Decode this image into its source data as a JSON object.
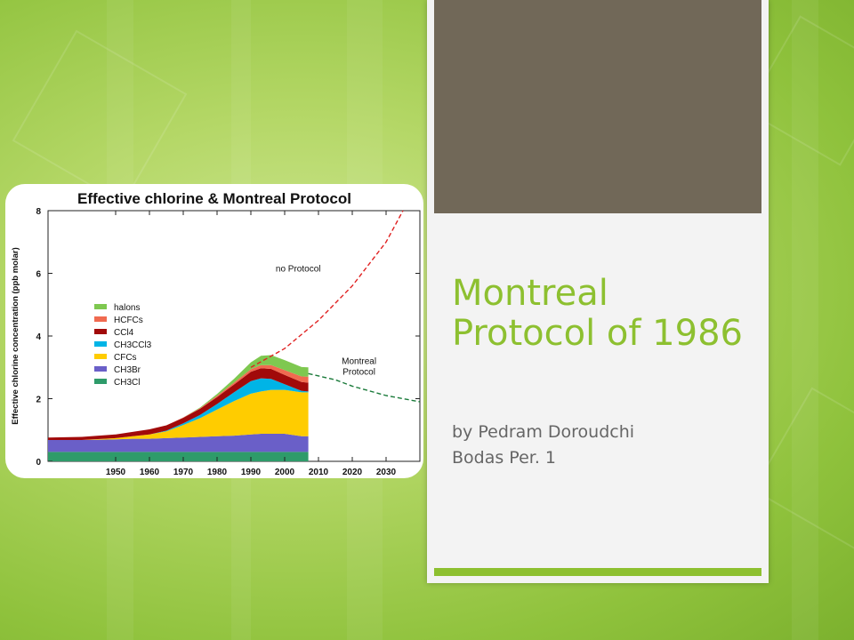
{
  "slide": {
    "title": "Montreal Protocol of 1986",
    "subtitle_line1": "by Pedram Doroudchi",
    "subtitle_line2": "Bodas Per. 1",
    "colors": {
      "accent": "#8dc030",
      "photo": "#716858",
      "panel": "#f3f3f3"
    }
  },
  "chart_data": {
    "type": "area",
    "title": "Effective chlorine & Montreal Protocol",
    "ylabel": "Effective chlorine concentration (ppb molar)",
    "xlabel": "",
    "xlim": [
      1930,
      2040
    ],
    "ylim": [
      0,
      8
    ],
    "x_ticks": [
      "1950",
      "1960",
      "1970",
      "1980",
      "1990",
      "2000",
      "2010",
      "2020",
      "2030"
    ],
    "y_ticks": [
      "0",
      "2",
      "4",
      "6",
      "8"
    ],
    "legend": [
      "halons",
      "HCFCs",
      "CCl4",
      "CH3CCl3",
      "CFCs",
      "CH3Br",
      "CH3Cl"
    ],
    "legend_placement": "left",
    "x": [
      1930,
      1940,
      1950,
      1955,
      1960,
      1965,
      1970,
      1975,
      1980,
      1985,
      1990,
      1993,
      1996,
      2000,
      2005,
      2007
    ],
    "series": [
      {
        "name": "CH3Cl",
        "color": "#2e9b6a",
        "values": [
          0.3,
          0.3,
          0.3,
          0.3,
          0.3,
          0.3,
          0.3,
          0.3,
          0.3,
          0.3,
          0.3,
          0.3,
          0.3,
          0.3,
          0.3,
          0.3
        ]
      },
      {
        "name": "CH3Br",
        "color": "#6a5fc8",
        "values": [
          0.38,
          0.38,
          0.4,
          0.42,
          0.42,
          0.44,
          0.46,
          0.48,
          0.5,
          0.52,
          0.56,
          0.58,
          0.58,
          0.58,
          0.5,
          0.5
        ]
      },
      {
        "name": "CFCs",
        "color": "#ffcc00",
        "values": [
          0.0,
          0.0,
          0.04,
          0.08,
          0.14,
          0.22,
          0.4,
          0.6,
          0.85,
          1.1,
          1.3,
          1.35,
          1.4,
          1.4,
          1.4,
          1.4
        ]
      },
      {
        "name": "CH3CCl3",
        "color": "#00b4e6",
        "values": [
          0.0,
          0.0,
          0.0,
          0.0,
          0.0,
          0.02,
          0.05,
          0.1,
          0.18,
          0.28,
          0.4,
          0.42,
          0.35,
          0.18,
          0.05,
          0.03
        ]
      },
      {
        "name": "CCl4",
        "color": "#a10a0a",
        "values": [
          0.08,
          0.1,
          0.12,
          0.14,
          0.16,
          0.17,
          0.18,
          0.2,
          0.22,
          0.25,
          0.3,
          0.32,
          0.32,
          0.3,
          0.28,
          0.28
        ]
      },
      {
        "name": "HCFCs",
        "color": "#f06a50",
        "values": [
          0.0,
          0.0,
          0.0,
          0.0,
          0.0,
          0.0,
          0.01,
          0.02,
          0.04,
          0.06,
          0.08,
          0.1,
          0.12,
          0.15,
          0.18,
          0.19
        ]
      },
      {
        "name": "halons",
        "color": "#7ec850",
        "values": [
          0.0,
          0.0,
          0.0,
          0.0,
          0.0,
          0.0,
          0.0,
          0.02,
          0.06,
          0.12,
          0.22,
          0.3,
          0.32,
          0.32,
          0.3,
          0.3
        ]
      }
    ],
    "projections": [
      {
        "name": "no Protocol",
        "color": "#e02020",
        "style": "dashed",
        "x": [
          1990,
          2000,
          2010,
          2020,
          2030,
          2035
        ],
        "values": [
          3.0,
          3.6,
          4.5,
          5.6,
          7.0,
          8.0
        ]
      },
      {
        "name": "Montreal Protocol",
        "color": "#1a7a3a",
        "style": "dashed",
        "x": [
          2007,
          2015,
          2020,
          2030,
          2040
        ],
        "values": [
          2.8,
          2.6,
          2.4,
          2.1,
          1.9
        ]
      }
    ]
  }
}
